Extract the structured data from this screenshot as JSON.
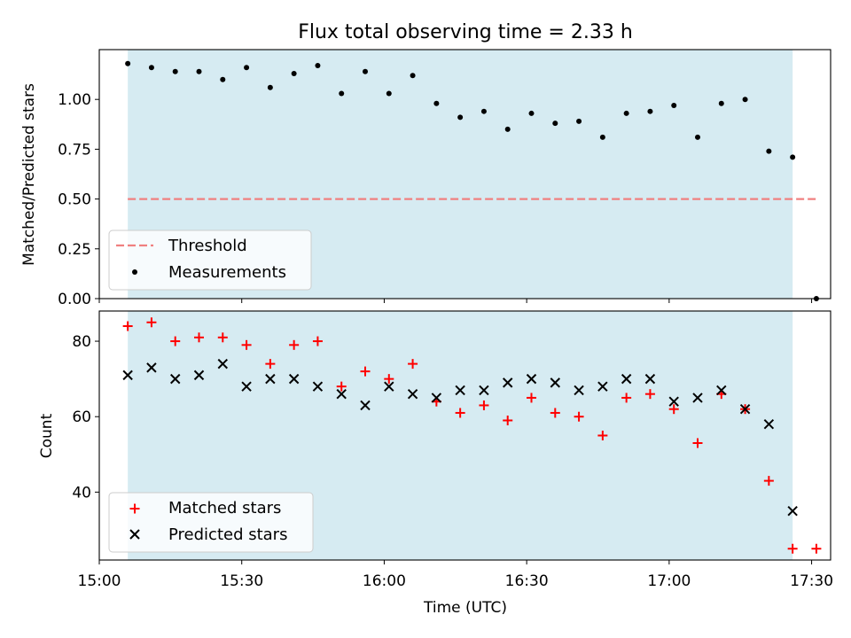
{
  "chart_data": [
    {
      "type": "scatter",
      "title": "Flux total observing time = 2.33 h",
      "xlabel": "",
      "ylabel": "Matched/Predicted stars",
      "xlim": [
        "15:00",
        "17:34"
      ],
      "ylim": [
        0,
        1.25
      ],
      "yticks": [
        "0.00",
        "0.25",
        "0.50",
        "0.75",
        "1.00"
      ],
      "shaded_region": {
        "x_start": "15:06",
        "x_end": "17:26",
        "color": "#add8e6"
      },
      "threshold": {
        "name": "Threshold",
        "y": 0.5,
        "x_start": "15:06",
        "x_end": "17:31",
        "color": "#f08080"
      },
      "legend": [
        "Threshold",
        "Measurements"
      ],
      "legend_position": "lower-left",
      "series": [
        {
          "name": "Measurements",
          "color": "#000000",
          "marker": "dot",
          "x": [
            "15:06",
            "15:11",
            "15:16",
            "15:21",
            "15:26",
            "15:31",
            "15:36",
            "15:41",
            "15:46",
            "15:51",
            "15:56",
            "16:01",
            "16:06",
            "16:11",
            "16:16",
            "16:21",
            "16:26",
            "16:31",
            "16:36",
            "16:41",
            "16:46",
            "16:51",
            "16:56",
            "17:01",
            "17:06",
            "17:11",
            "17:16",
            "17:21",
            "17:26",
            "17:31"
          ],
          "values": [
            1.18,
            1.16,
            1.14,
            1.14,
            1.1,
            1.16,
            1.06,
            1.13,
            1.17,
            1.03,
            1.14,
            1.03,
            1.12,
            0.98,
            0.91,
            0.94,
            0.85,
            0.93,
            0.88,
            0.89,
            0.81,
            0.93,
            0.94,
            0.97,
            0.81,
            0.98,
            1.0,
            0.74,
            0.71,
            0.0
          ]
        }
      ]
    },
    {
      "type": "scatter",
      "title": "",
      "xlabel": "Time (UTC)",
      "ylabel": "Count",
      "xlim": [
        "15:00",
        "17:34"
      ],
      "ylim": [
        22,
        88
      ],
      "xticks": [
        "15:00",
        "15:30",
        "16:00",
        "16:30",
        "17:00",
        "17:30"
      ],
      "yticks": [
        "40",
        "60",
        "80"
      ],
      "shaded_region": {
        "x_start": "15:06",
        "x_end": "17:26",
        "color": "#add8e6"
      },
      "legend": [
        "Matched stars",
        "Predicted stars"
      ],
      "legend_position": "lower-left",
      "series": [
        {
          "name": "Matched stars",
          "color": "#ff0000",
          "marker": "plus",
          "x": [
            "15:06",
            "15:11",
            "15:16",
            "15:21",
            "15:26",
            "15:31",
            "15:36",
            "15:41",
            "15:46",
            "15:51",
            "15:56",
            "16:01",
            "16:06",
            "16:11",
            "16:16",
            "16:21",
            "16:26",
            "16:31",
            "16:36",
            "16:41",
            "16:46",
            "16:51",
            "16:56",
            "17:01",
            "17:06",
            "17:11",
            "17:16",
            "17:21",
            "17:26",
            "17:31"
          ],
          "values": [
            84,
            85,
            80,
            81,
            81,
            79,
            74,
            79,
            80,
            68,
            72,
            70,
            74,
            64,
            61,
            63,
            59,
            65,
            61,
            60,
            55,
            65,
            66,
            62,
            53,
            66,
            62,
            43,
            25,
            25
          ]
        },
        {
          "name": "Predicted stars",
          "color": "#000000",
          "marker": "x",
          "x": [
            "15:06",
            "15:11",
            "15:16",
            "15:21",
            "15:26",
            "15:31",
            "15:36",
            "15:41",
            "15:46",
            "15:51",
            "15:56",
            "16:01",
            "16:06",
            "16:11",
            "16:16",
            "16:21",
            "16:26",
            "16:31",
            "16:36",
            "16:41",
            "16:46",
            "16:51",
            "16:56",
            "17:01",
            "17:06",
            "17:11",
            "17:16",
            "17:21",
            "17:26"
          ],
          "values": [
            71,
            73,
            70,
            71,
            74,
            68,
            70,
            70,
            68,
            66,
            63,
            68,
            66,
            65,
            67,
            67,
            69,
            70,
            69,
            67,
            68,
            70,
            70,
            64,
            65,
            67,
            62,
            58,
            35
          ]
        }
      ]
    }
  ]
}
